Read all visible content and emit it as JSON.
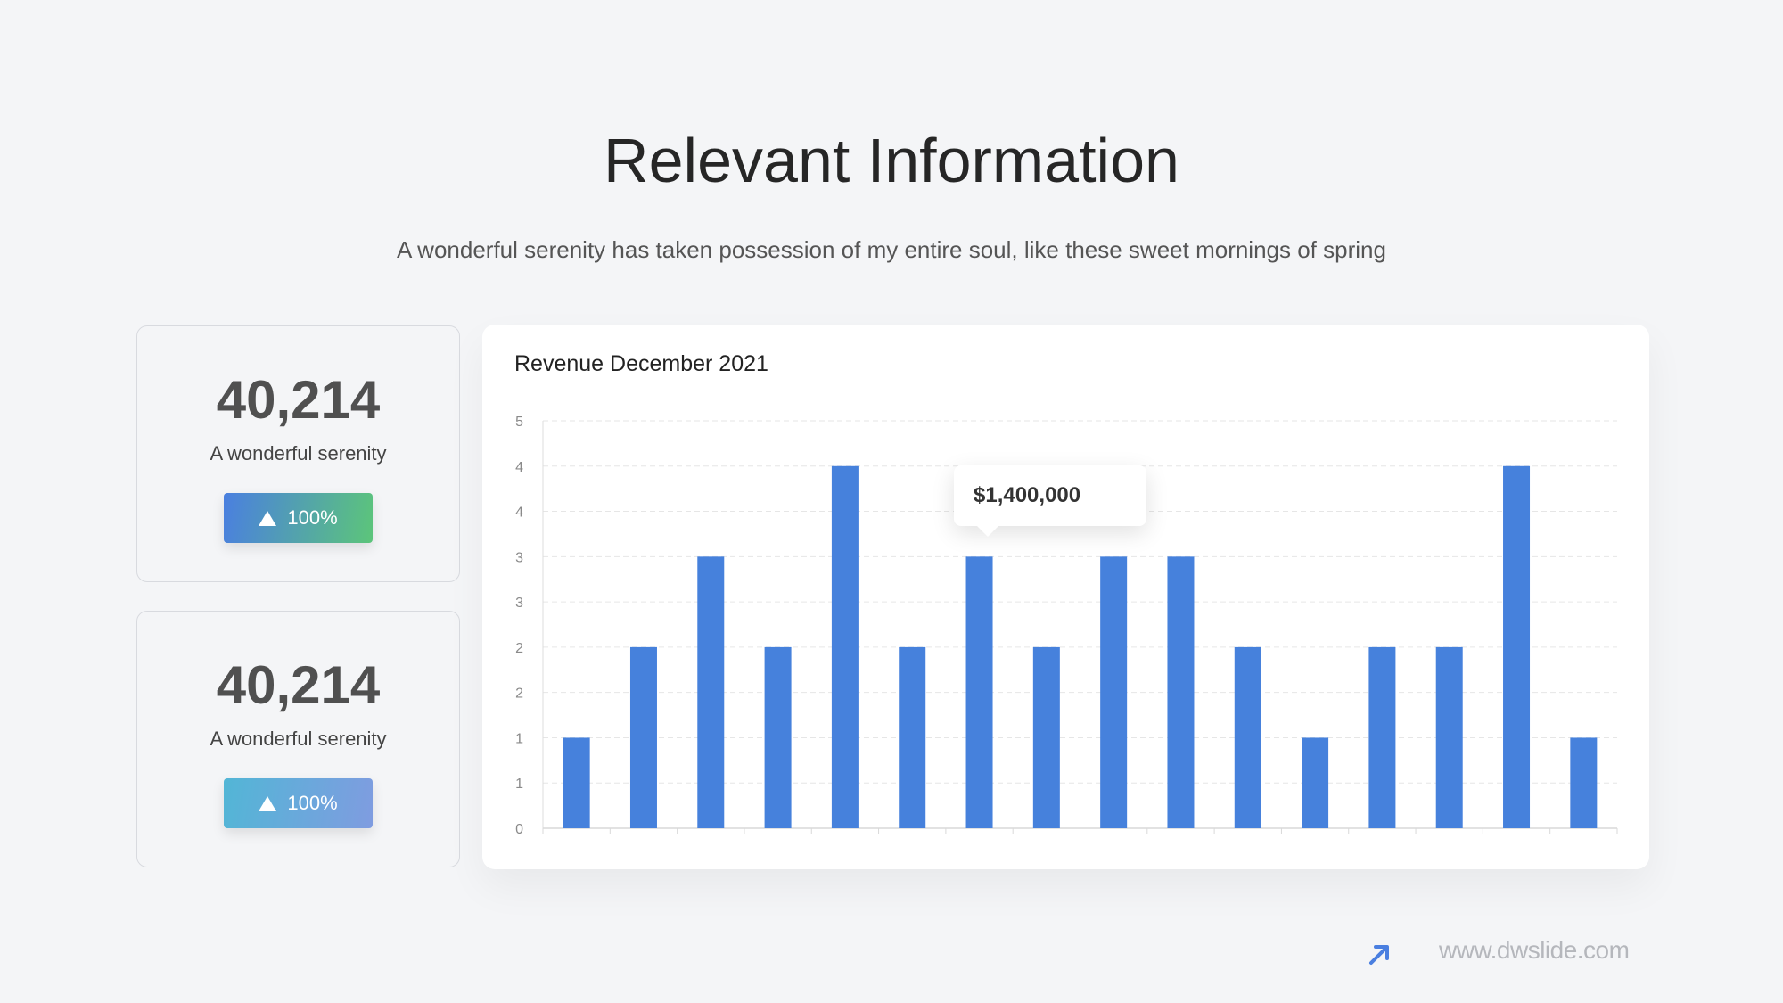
{
  "header": {
    "title": "Relevant Information",
    "subtitle": "A wonderful serenity has taken possession of my entire soul, like these sweet mornings of spring"
  },
  "stats": [
    {
      "value": "40,214",
      "label": "A wonderful serenity",
      "badge": "100%"
    },
    {
      "value": "40,214",
      "label": "A wonderful serenity",
      "badge": "100%"
    }
  ],
  "tooltip": {
    "text": "$1,400,000"
  },
  "footer": {
    "url": "www.dwslide.com",
    "icon": "arrow-up-right-icon"
  },
  "colors": {
    "bar": "#4681dc",
    "accent": "#4a7fe0"
  },
  "chart_data": {
    "type": "bar",
    "title": "Revenue December 2021",
    "xlabel": "",
    "ylabel": "",
    "ylim": [
      0,
      4.5
    ],
    "y_tick_labels": [
      "0",
      "1",
      "1",
      "2",
      "2",
      "3",
      "3",
      "4",
      "4",
      "5"
    ],
    "grid": true,
    "categories": [
      "",
      "",
      "",
      "",
      "",
      "",
      "",
      "",
      "",
      "",
      "",
      "",
      "",
      "",
      "",
      ""
    ],
    "values": [
      1,
      2,
      3,
      2,
      4,
      2,
      3,
      2,
      3,
      3,
      2,
      1,
      2,
      2,
      4,
      1
    ]
  }
}
